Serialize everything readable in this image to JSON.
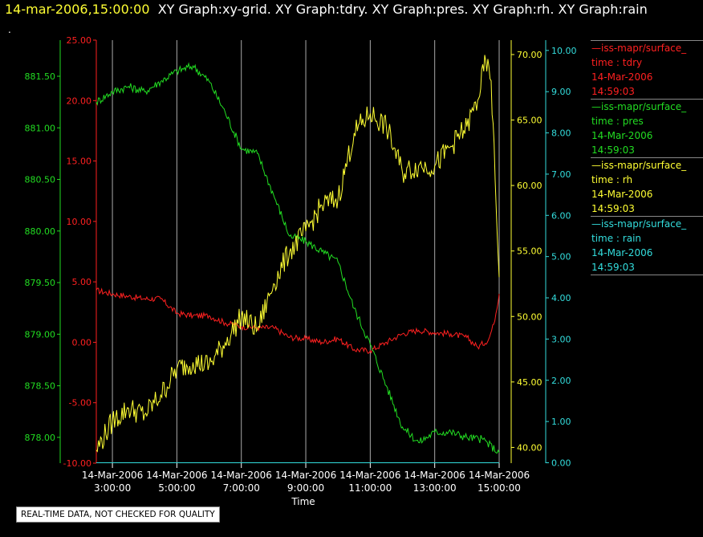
{
  "header": {
    "timestamp": "14-mar-2006,15:00:00",
    "graphs": "XY Graph:xy-grid.  XY Graph:tdry.  XY Graph:pres.  XY Graph:rh.  XY Graph:rain"
  },
  "dot_mark": ".",
  "colors": {
    "tdry": "#ff2020",
    "pres": "#22dd22",
    "rh": "#ffff33",
    "rain": "#33dddd",
    "grid": "#aaaaaa"
  },
  "legend": [
    {
      "series": "iss-mapr/surface_",
      "var": "time : tdry",
      "date": "14-Mar-2006",
      "time": "14:59:03",
      "color": "#ff2020"
    },
    {
      "series": "iss-mapr/surface_",
      "var": "time : pres",
      "date": "14-Mar-2006",
      "time": "14:59:03",
      "color": "#22dd22"
    },
    {
      "series": "iss-mapr/surface_",
      "var": "time : rh",
      "date": "14-Mar-2006",
      "time": "14:59:03",
      "color": "#ffff33"
    },
    {
      "series": "iss-mapr/surface_",
      "var": "time : rain",
      "date": "14-Mar-2006",
      "time": "14:59:03",
      "color": "#33dddd"
    }
  ],
  "notice": "REAL-TIME DATA, NOT CHECKED FOR QUALITY",
  "chart_data": {
    "type": "line",
    "xlabel": "Time",
    "x_range": [
      "14-Mar-2006 02:30:00",
      "14-Mar-2006 15:00:00"
    ],
    "x_ticks": [
      {
        "time": "03:00",
        "date": "14-Mar-2006",
        "label": "3:00:00"
      },
      {
        "time": "05:00",
        "date": "14-Mar-2006",
        "label": "5:00:00"
      },
      {
        "time": "07:00",
        "date": "14-Mar-2006",
        "label": "7:00:00"
      },
      {
        "time": "09:00",
        "date": "14-Mar-2006",
        "label": "9:00:00"
      },
      {
        "time": "11:00",
        "date": "14-Mar-2006",
        "label": "11:00:00"
      },
      {
        "time": "13:00",
        "date": "14-Mar-2006",
        "label": "13:00:00"
      },
      {
        "time": "15:00",
        "date": "14-Mar-2006",
        "label": "15:00:00"
      }
    ],
    "grid": "vertical",
    "axes": {
      "pres": {
        "range": [
          877.75,
          881.85
        ],
        "ticks": [
          "878.00",
          "878.50",
          "879.00",
          "879.50",
          "880.00",
          "880.50",
          "881.00",
          "881.50"
        ],
        "side": "left-outer"
      },
      "tdry": {
        "range": [
          -10,
          25
        ],
        "ticks": [
          "-10.00",
          "-5.00",
          "0.00",
          "5.00",
          "10.00",
          "15.00",
          "20.00",
          "25.00"
        ],
        "side": "left-inner"
      },
      "rh": {
        "range": [
          38.8,
          71.1
        ],
        "ticks": [
          "40.00",
          "45.00",
          "50.00",
          "55.00",
          "60.00",
          "65.00",
          "70.00"
        ],
        "side": "right-inner"
      },
      "rain": {
        "range": [
          -0.01,
          10.25
        ],
        "ticks": [
          "0.00",
          "1.00",
          "2.00",
          "3.00",
          "4.00",
          "5.00",
          "6.00",
          "7.00",
          "8.00",
          "9.00",
          "10.00"
        ],
        "side": "right-outer"
      }
    },
    "series": [
      {
        "key": "tdry",
        "name": "time : tdry",
        "points": [
          [
            "02:30",
            4.3
          ],
          [
            "03:00",
            4.0
          ],
          [
            "03:30",
            3.8
          ],
          [
            "04:00",
            3.6
          ],
          [
            "04:30",
            3.6
          ],
          [
            "05:00",
            2.4
          ],
          [
            "05:30",
            2.2
          ],
          [
            "06:00",
            2.2
          ],
          [
            "06:30",
            1.6
          ],
          [
            "07:00",
            1.3
          ],
          [
            "07:30",
            1.2
          ],
          [
            "08:00",
            1.2
          ],
          [
            "08:30",
            0.4
          ],
          [
            "09:00",
            0.3
          ],
          [
            "09:30",
            0.0
          ],
          [
            "10:00",
            0.3
          ],
          [
            "10:30",
            -0.6
          ],
          [
            "11:00",
            -0.7
          ],
          [
            "11:30",
            0.0
          ],
          [
            "12:00",
            0.7
          ],
          [
            "12:30",
            1.0
          ],
          [
            "13:00",
            0.8
          ],
          [
            "13:30",
            0.7
          ],
          [
            "14:00",
            0.4
          ],
          [
            "14:20",
            -0.4
          ],
          [
            "14:40",
            0.2
          ],
          [
            "14:50",
            1.5
          ],
          [
            "15:00",
            4.0
          ]
        ]
      },
      {
        "key": "pres",
        "name": "time : pres",
        "points": [
          [
            "02:30",
            881.25
          ],
          [
            "03:00",
            881.35
          ],
          [
            "03:30",
            881.4
          ],
          [
            "04:00",
            881.35
          ],
          [
            "04:30",
            881.45
          ],
          [
            "05:00",
            881.55
          ],
          [
            "05:30",
            881.6
          ],
          [
            "06:00",
            881.45
          ],
          [
            "06:30",
            881.15
          ],
          [
            "07:00",
            880.8
          ],
          [
            "07:30",
            880.75
          ],
          [
            "08:00",
            880.35
          ],
          [
            "08:30",
            879.95
          ],
          [
            "09:00",
            879.9
          ],
          [
            "09:30",
            879.8
          ],
          [
            "10:00",
            879.7
          ],
          [
            "10:30",
            879.25
          ],
          [
            "11:00",
            878.9
          ],
          [
            "11:30",
            878.5
          ],
          [
            "12:00",
            878.1
          ],
          [
            "12:30",
            877.95
          ],
          [
            "13:00",
            878.05
          ],
          [
            "13:30",
            878.05
          ],
          [
            "14:00",
            878.0
          ],
          [
            "14:30",
            877.98
          ],
          [
            "15:00",
            877.85
          ]
        ]
      },
      {
        "key": "rh",
        "name": "time : rh",
        "points": [
          [
            "02:30",
            39.8
          ],
          [
            "03:00",
            42.0
          ],
          [
            "03:30",
            43.0
          ],
          [
            "04:00",
            42.5
          ],
          [
            "04:30",
            44.0
          ],
          [
            "05:00",
            46.0
          ],
          [
            "05:30",
            46.5
          ],
          [
            "06:00",
            46.3
          ],
          [
            "06:30",
            48.0
          ],
          [
            "07:00",
            50.0
          ],
          [
            "07:30",
            49.0
          ],
          [
            "08:00",
            52.5
          ],
          [
            "08:30",
            55.0
          ],
          [
            "09:00",
            56.5
          ],
          [
            "09:30",
            58.5
          ],
          [
            "10:00",
            59.0
          ],
          [
            "10:30",
            64.0
          ],
          [
            "11:00",
            65.5
          ],
          [
            "11:30",
            64.5
          ],
          [
            "12:00",
            61.0
          ],
          [
            "12:30",
            61.5
          ],
          [
            "13:00",
            61.5
          ],
          [
            "13:30",
            63.0
          ],
          [
            "14:00",
            64.5
          ],
          [
            "14:20",
            66.5
          ],
          [
            "14:35",
            69.5
          ],
          [
            "14:45",
            68.0
          ],
          [
            "15:00",
            53.0
          ]
        ]
      },
      {
        "key": "rain",
        "name": "time : rain",
        "points": [
          [
            "02:30",
            0.0
          ],
          [
            "15:00",
            0.0
          ]
        ]
      }
    ]
  }
}
